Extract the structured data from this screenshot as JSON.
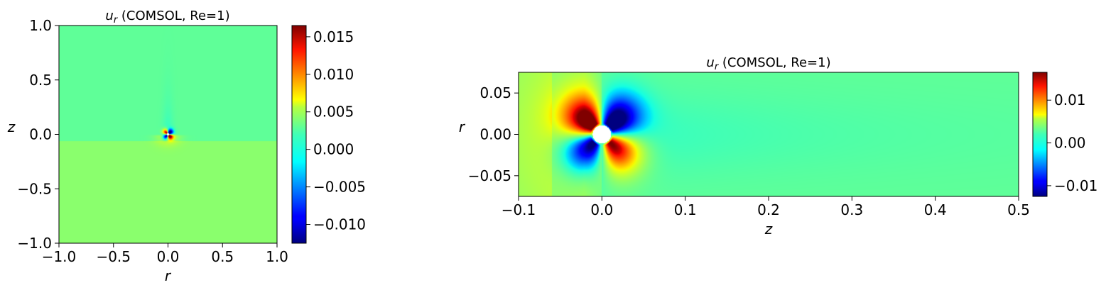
{
  "chart_data": [
    {
      "type": "heatmap",
      "title_var": "u",
      "title_sub": "r",
      "title_rest": " (COMSOL, Re=1)",
      "xlabel": "r",
      "ylabel": "z",
      "xlim": [
        -1.0,
        1.0
      ],
      "ylim": [
        -1.0,
        1.0
      ],
      "xticks": [
        -1.0,
        -0.5,
        0.0,
        0.5,
        1.0
      ],
      "xtick_labels": [
        "−1.0",
        "−0.5",
        "0.0",
        "0.5",
        "1.0"
      ],
      "yticks": [
        -1.0,
        -0.5,
        0.0,
        0.5,
        1.0
      ],
      "ytick_labels": [
        "−1.0",
        "−0.5",
        "0.0",
        "0.5",
        "1.0"
      ],
      "colormap": "jet",
      "color_range": [
        -0.0125,
        0.0165
      ],
      "colorbar_ticks": [
        -0.01,
        -0.005,
        0.0,
        0.005,
        0.01,
        0.015
      ],
      "colorbar_tick_labels": [
        "−0.010",
        "−0.005",
        "0.000",
        "0.005",
        "0.010",
        "0.015"
      ],
      "field": {
        "background": 0.001,
        "sphere_radius": 0.012,
        "lobe_peak": 0.0165
      }
    },
    {
      "type": "heatmap",
      "title_var": "u",
      "title_sub": "r",
      "title_rest": " (COMSOL, Re=1)",
      "xlabel": "z",
      "ylabel": "r",
      "xlim": [
        -0.1,
        0.5
      ],
      "ylim": [
        -0.075,
        0.075
      ],
      "xticks": [
        -0.1,
        0.0,
        0.1,
        0.2,
        0.3,
        0.4,
        0.5
      ],
      "xtick_labels": [
        "−0.1",
        "0.0",
        "0.1",
        "0.2",
        "0.3",
        "0.4",
        "0.5"
      ],
      "yticks": [
        -0.05,
        0.0,
        0.05
      ],
      "ytick_labels": [
        "−0.05",
        "0.00",
        "0.05"
      ],
      "colormap": "jet",
      "color_range": [
        -0.0125,
        0.0165
      ],
      "colorbar_ticks": [
        -0.01,
        0.0,
        0.01
      ],
      "colorbar_tick_labels": [
        "−0.01",
        "0.00",
        "0.01"
      ],
      "field": {
        "background": 0.001,
        "sphere_radius": 0.011,
        "lobe_peak": 0.0165
      }
    }
  ]
}
